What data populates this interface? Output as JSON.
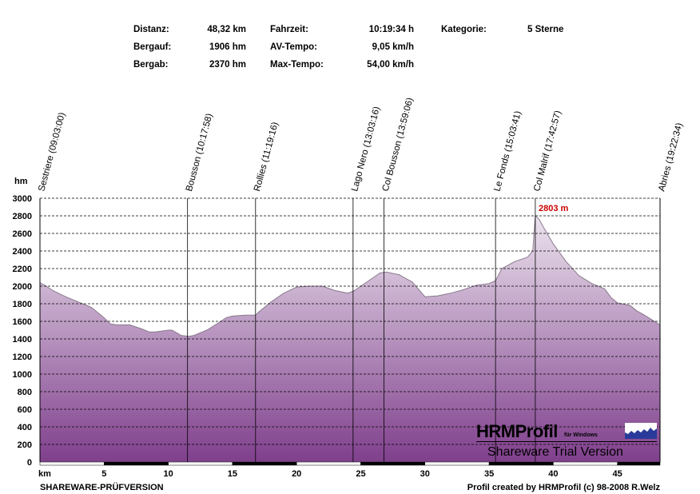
{
  "stats": {
    "distance_label": "Distanz:",
    "distance_value": "48,32 km",
    "up_label": "Bergauf:",
    "up_value": "1906 hm",
    "down_label": "Bergab:",
    "down_value": "2370 hm",
    "time_label": "Fahrzeit:",
    "time_value": "10:19:34 h",
    "avg_label": "AV-Tempo:",
    "avg_value": "9,05 km/h",
    "max_label": "Max-Tempo:",
    "max_value": "54,00 km/h",
    "category_label": "Kategorie:",
    "category_value": "5 Sterne"
  },
  "footer": {
    "left": "SHAREWARE-PRÜFVERSION",
    "right": "Profil created by HRMProfil (c) 98-2008 R.Welz"
  },
  "logo": {
    "title": "HRMProfil",
    "subtitle": "für Windows",
    "trial": "Shareware Trial  Version"
  },
  "chart_data": {
    "type": "area",
    "xlabel": "km",
    "ylabel": "hm",
    "xlim": [
      0,
      48.32
    ],
    "ylim": [
      0,
      3000
    ],
    "x_ticks": [
      5,
      10,
      15,
      20,
      25,
      30,
      35,
      40,
      45
    ],
    "y_ticks": [
      0,
      200,
      400,
      600,
      800,
      1000,
      1200,
      1400,
      1600,
      1800,
      2000,
      2200,
      2400,
      2600,
      2800,
      3000
    ],
    "grid": "horizontal dashed",
    "peak_label": "2803 m",
    "colors": {
      "fill_top": "#ece4ee",
      "fill_bottom": "#7f3f8c",
      "line": "#8a7a8e",
      "peak": "#cc0000"
    },
    "series": [
      {
        "x": [
          0,
          0.5,
          1,
          2,
          3,
          4,
          4.5,
          5,
          5.5,
          6,
          7,
          8,
          8.5,
          9,
          10,
          10.3,
          11,
          11.6,
          12,
          13,
          14,
          14.5,
          15,
          16,
          16.8,
          17,
          18,
          19,
          20,
          21,
          22,
          23,
          24,
          24.5,
          25,
          25.5,
          26,
          26.5,
          27,
          28,
          28.6,
          29,
          30,
          31,
          32,
          33,
          34,
          35,
          35.3,
          35.5,
          36,
          37,
          38,
          38.4,
          38.6,
          38.9,
          39.2,
          40,
          41,
          42,
          43,
          44,
          44.5,
          45,
          46,
          46.5,
          47,
          48.32
        ],
        "y": [
          2040,
          2000,
          1950,
          1880,
          1820,
          1760,
          1700,
          1640,
          1570,
          1560,
          1560,
          1510,
          1480,
          1480,
          1500,
          1500,
          1440,
          1430,
          1440,
          1500,
          1590,
          1640,
          1660,
          1670,
          1670,
          1700,
          1820,
          1920,
          1990,
          2000,
          2000,
          1950,
          1920,
          1950,
          2000,
          2050,
          2100,
          2150,
          2160,
          2130,
          2080,
          2050,
          1880,
          1890,
          1920,
          1960,
          2010,
          2030,
          2050,
          2060,
          2200,
          2280,
          2330,
          2400,
          2803,
          2760,
          2680,
          2480,
          2280,
          2120,
          2030,
          1970,
          1870,
          1810,
          1780,
          1720,
          1680,
          1560
        ]
      }
    ],
    "waypoints": [
      {
        "km": 0,
        "label": "Sestriere (09:03:00)"
      },
      {
        "km": 11.5,
        "label": "Bousson (10:17:58)"
      },
      {
        "km": 16.8,
        "label": "Rollies (11:19:16)"
      },
      {
        "km": 24.4,
        "label": "Lago Nero (13:03:16)"
      },
      {
        "km": 26.8,
        "label": "Col Bousson (13:59:06)"
      },
      {
        "km": 35.5,
        "label": "Le Fonds (15:03:41)"
      },
      {
        "km": 38.6,
        "label": "Col Malrif (17:42:57)"
      },
      {
        "km": 48.32,
        "label": "Abries (19:22:34)"
      }
    ]
  }
}
